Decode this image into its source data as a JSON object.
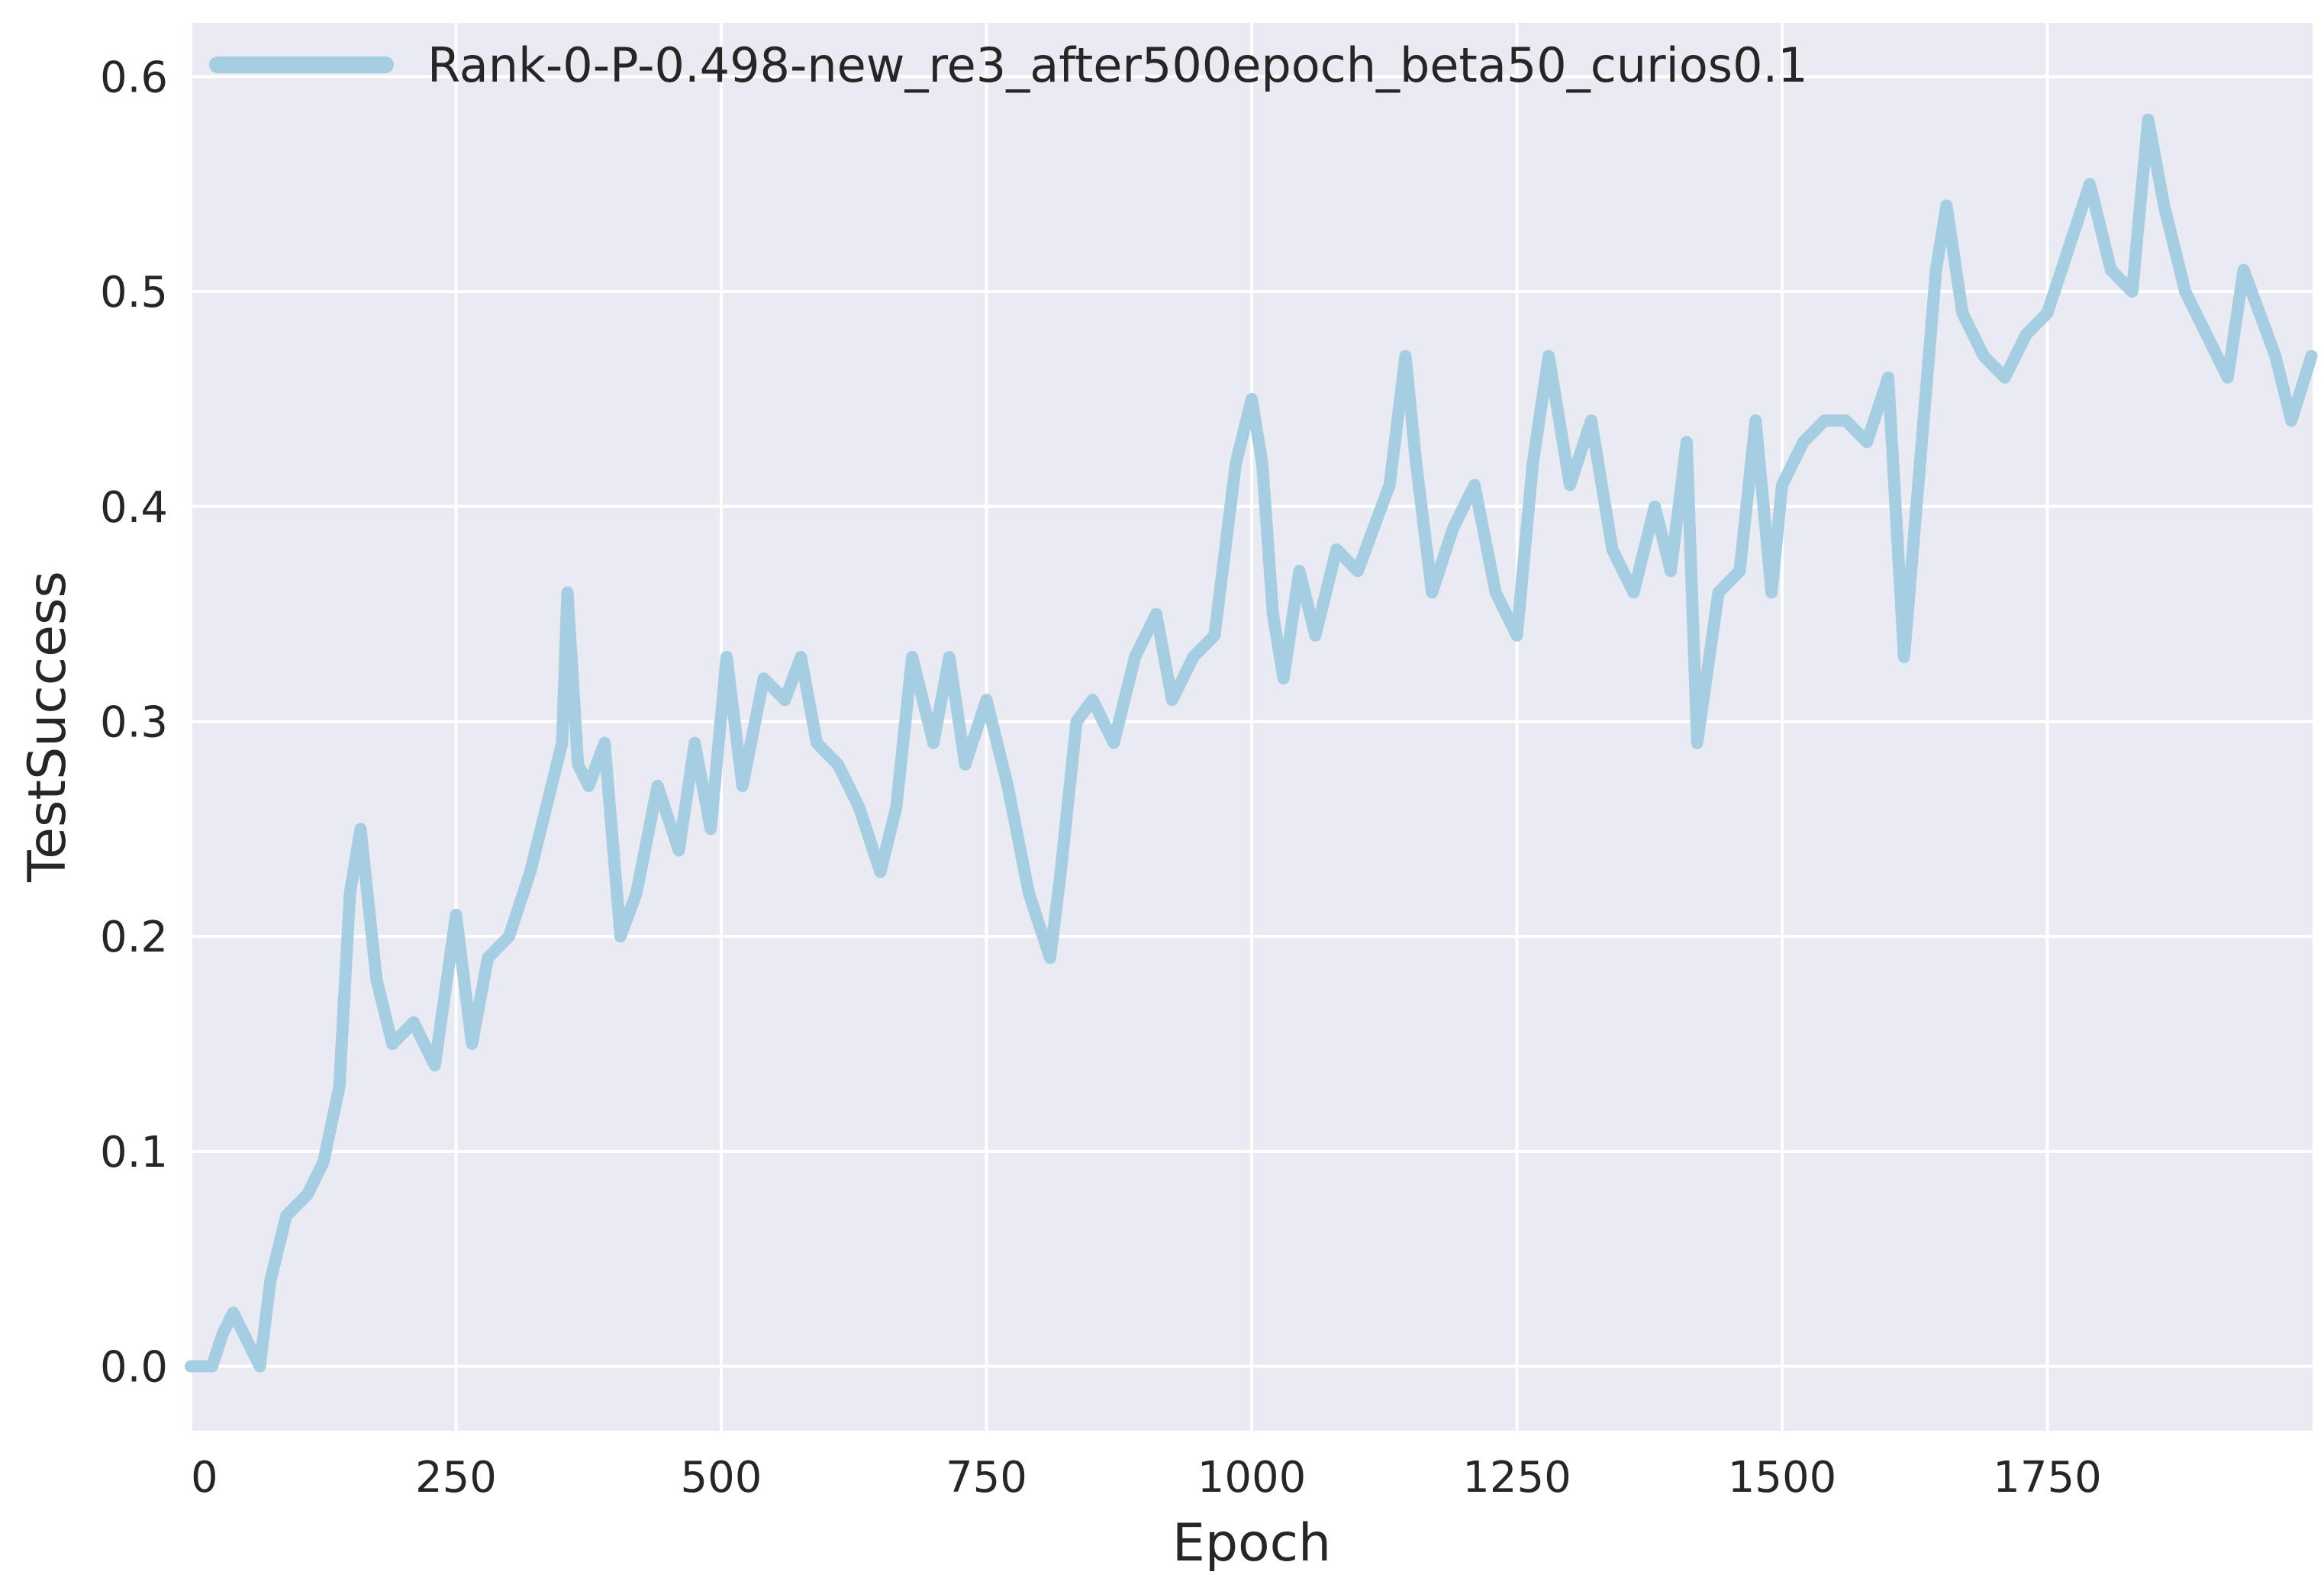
{
  "chart_data": {
    "type": "line",
    "title": "",
    "xlabel": "Epoch",
    "ylabel": "TestSuccess",
    "xlim": [
      0,
      2000
    ],
    "ylim": [
      -0.03,
      0.625
    ],
    "xticks": [
      0,
      250,
      500,
      750,
      1000,
      1250,
      1500,
      1750
    ],
    "xtick_labels": [
      "0",
      "250",
      "500",
      "750",
      "1000",
      "1250",
      "1500",
      "1750"
    ],
    "yticks": [
      0.0,
      0.1,
      0.2,
      0.3,
      0.4,
      0.5,
      0.6
    ],
    "ytick_labels": [
      "0.0",
      "0.1",
      "0.2",
      "0.3",
      "0.4",
      "0.5",
      "0.6"
    ],
    "grid": true,
    "legend_position": "top-left",
    "colors": {
      "background": "#eaeaf2",
      "grid": "#ffffff",
      "line": "#a6cee3"
    },
    "series": [
      {
        "name": "Rank-0-P-0.498-new_re3_after500epoch_beta50_curios0.1",
        "x": [
          0,
          20,
          30,
          40,
          55,
          65,
          75,
          90,
          110,
          125,
          140,
          150,
          160,
          175,
          190,
          210,
          230,
          250,
          265,
          280,
          300,
          320,
          335,
          350,
          355,
          365,
          375,
          390,
          405,
          420,
          440,
          460,
          475,
          490,
          505,
          520,
          540,
          560,
          575,
          590,
          610,
          630,
          650,
          665,
          680,
          700,
          715,
          730,
          750,
          770,
          790,
          810,
          820,
          835,
          850,
          870,
          890,
          910,
          925,
          945,
          965,
          985,
          1000,
          1010,
          1020,
          1030,
          1045,
          1060,
          1080,
          1100,
          1115,
          1130,
          1145,
          1155,
          1170,
          1190,
          1210,
          1230,
          1250,
          1265,
          1280,
          1300,
          1320,
          1340,
          1360,
          1380,
          1395,
          1410,
          1420,
          1440,
          1460,
          1475,
          1490,
          1500,
          1520,
          1540,
          1560,
          1580,
          1600,
          1615,
          1630,
          1645,
          1655,
          1670,
          1690,
          1710,
          1730,
          1750,
          1770,
          1790,
          1810,
          1830,
          1845,
          1860,
          1880,
          1900,
          1920,
          1935,
          1950,
          1965,
          1980,
          1999
        ],
        "y": [
          0.0,
          0.0,
          0.015,
          0.025,
          0.01,
          0.0,
          0.04,
          0.07,
          0.08,
          0.095,
          0.13,
          0.22,
          0.25,
          0.18,
          0.15,
          0.16,
          0.14,
          0.21,
          0.15,
          0.19,
          0.2,
          0.23,
          0.26,
          0.29,
          0.36,
          0.28,
          0.27,
          0.29,
          0.2,
          0.22,
          0.27,
          0.24,
          0.29,
          0.25,
          0.33,
          0.27,
          0.32,
          0.31,
          0.33,
          0.29,
          0.28,
          0.26,
          0.23,
          0.26,
          0.33,
          0.29,
          0.33,
          0.28,
          0.31,
          0.27,
          0.22,
          0.19,
          0.23,
          0.3,
          0.31,
          0.29,
          0.33,
          0.35,
          0.31,
          0.33,
          0.34,
          0.42,
          0.45,
          0.42,
          0.35,
          0.32,
          0.37,
          0.34,
          0.38,
          0.37,
          0.39,
          0.41,
          0.47,
          0.42,
          0.36,
          0.39,
          0.41,
          0.36,
          0.34,
          0.42,
          0.47,
          0.41,
          0.44,
          0.38,
          0.36,
          0.4,
          0.37,
          0.43,
          0.29,
          0.36,
          0.37,
          0.44,
          0.36,
          0.41,
          0.43,
          0.44,
          0.44,
          0.43,
          0.46,
          0.33,
          0.42,
          0.51,
          0.54,
          0.49,
          0.47,
          0.46,
          0.48,
          0.49,
          0.52,
          0.55,
          0.51,
          0.5,
          0.58,
          0.54,
          0.5,
          0.48,
          0.46,
          0.51,
          0.49,
          0.47,
          0.44,
          0.47
        ]
      }
    ]
  }
}
